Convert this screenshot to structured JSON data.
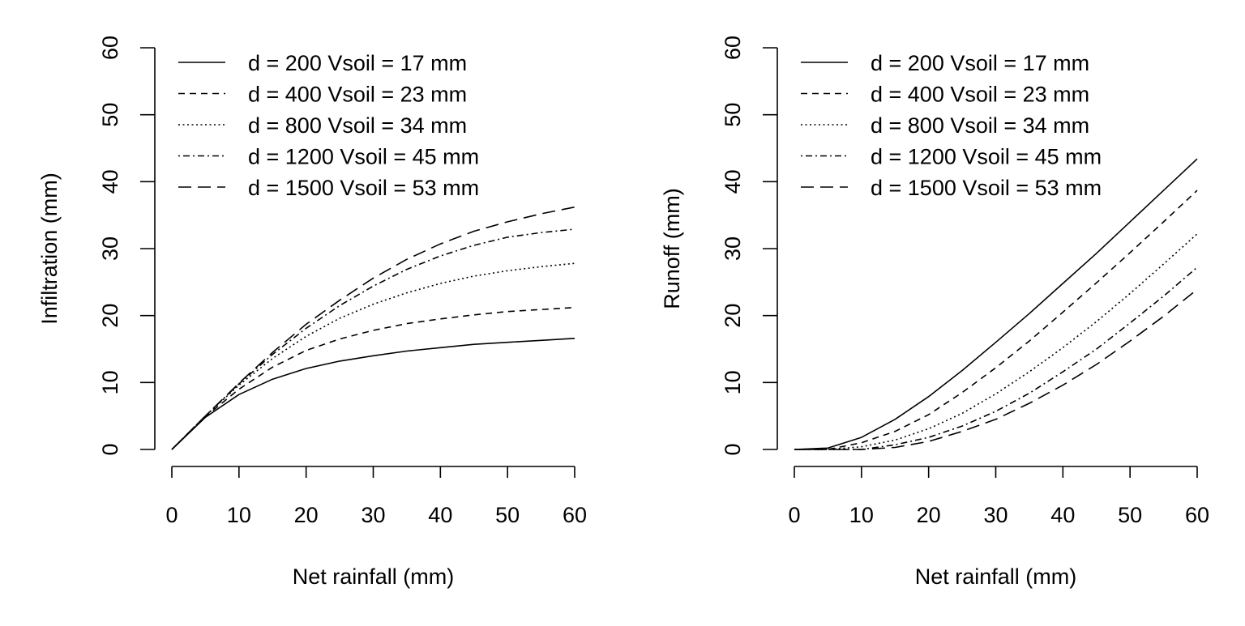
{
  "chart_data": [
    {
      "type": "line",
      "title": "",
      "xlabel": "Net rainfall (mm)",
      "ylabel": "Infiltration (mm)",
      "xlim": [
        0,
        60
      ],
      "ylim": [
        0,
        60
      ],
      "x_ticks": [
        "0",
        "10",
        "20",
        "30",
        "40",
        "50",
        "60"
      ],
      "y_ticks": [
        "0",
        "10",
        "20",
        "30",
        "40",
        "50",
        "60"
      ],
      "grid": false,
      "legend_position": "top-left",
      "x": [
        0,
        5,
        10,
        15,
        20,
        25,
        30,
        35,
        40,
        45,
        50,
        55,
        60
      ],
      "series": [
        {
          "name": "d = 200 Vsoil = 17 mm",
          "line_style": "solid",
          "values": [
            0,
            4.8,
            8.2,
            10.5,
            12.1,
            13.2,
            14.0,
            14.7,
            15.2,
            15.7,
            16.0,
            16.3,
            16.6
          ]
        },
        {
          "name": "d = 400 Vsoil = 23 mm",
          "line_style": "dashed",
          "values": [
            0,
            4.9,
            9.0,
            12.3,
            14.8,
            16.5,
            17.8,
            18.8,
            19.5,
            20.1,
            20.6,
            20.9,
            21.2
          ]
        },
        {
          "name": "d = 800 Vsoil = 34 mm",
          "line_style": "dotted",
          "values": [
            0,
            5.0,
            9.6,
            13.6,
            16.9,
            19.6,
            21.7,
            23.4,
            24.8,
            25.9,
            26.7,
            27.3,
            27.8
          ]
        },
        {
          "name": "d = 1200 Vsoil = 45 mm",
          "line_style": "dotdash",
          "values": [
            0,
            5.0,
            9.8,
            14.2,
            18.1,
            21.5,
            24.4,
            26.9,
            28.9,
            30.5,
            31.7,
            32.4,
            32.9
          ]
        },
        {
          "name": "d = 1500 Vsoil = 53 mm",
          "line_style": "longdash",
          "values": [
            0,
            5.0,
            9.9,
            14.5,
            18.7,
            22.3,
            25.6,
            28.4,
            30.7,
            32.6,
            34.0,
            35.2,
            36.2
          ]
        }
      ]
    },
    {
      "type": "line",
      "title": "",
      "xlabel": "Net rainfall (mm)",
      "ylabel": "Runoff (mm)",
      "xlim": [
        0,
        60
      ],
      "ylim": [
        0,
        60
      ],
      "x_ticks": [
        "0",
        "10",
        "20",
        "30",
        "40",
        "50",
        "60"
      ],
      "y_ticks": [
        "0",
        "10",
        "20",
        "30",
        "40",
        "50",
        "60"
      ],
      "grid": false,
      "legend_position": "top-left",
      "x": [
        0,
        5,
        10,
        15,
        20,
        25,
        30,
        35,
        40,
        45,
        50,
        55,
        60
      ],
      "series": [
        {
          "name": "d = 200 Vsoil = 17 mm",
          "line_style": "solid",
          "values": [
            0,
            0.2,
            1.8,
            4.5,
            7.9,
            11.8,
            16.0,
            20.3,
            24.8,
            29.3,
            34.0,
            38.7,
            43.4
          ]
        },
        {
          "name": "d = 400 Vsoil = 23 mm",
          "line_style": "dashed",
          "values": [
            0,
            0,
            1.0,
            2.7,
            5.2,
            8.5,
            12.2,
            16.2,
            20.5,
            24.9,
            29.4,
            34.0,
            38.7
          ]
        },
        {
          "name": "d = 800 Vsoil = 34 mm",
          "line_style": "dotted",
          "values": [
            0,
            0,
            0.4,
            1.4,
            3.1,
            5.4,
            8.3,
            11.6,
            15.2,
            19.1,
            23.3,
            27.7,
            32.2
          ]
        },
        {
          "name": "d = 1200 Vsoil = 45 mm",
          "line_style": "dotdash",
          "values": [
            0,
            0,
            0,
            0.7,
            1.8,
            3.5,
            5.7,
            8.4,
            11.6,
            15.0,
            18.9,
            22.9,
            27.2
          ]
        },
        {
          "name": "d = 1500 Vsoil = 53 mm",
          "line_style": "longdash",
          "values": [
            0,
            0,
            0,
            0.3,
            1.2,
            2.7,
            4.5,
            6.9,
            9.6,
            12.7,
            16.2,
            19.9,
            23.9
          ]
        }
      ]
    }
  ]
}
